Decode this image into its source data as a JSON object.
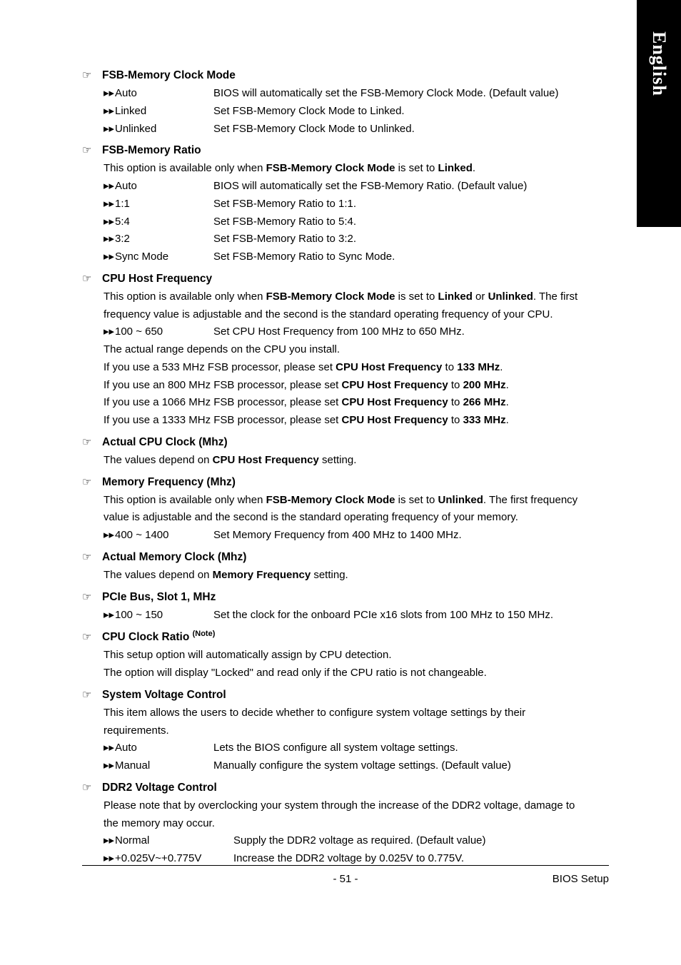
{
  "side_tab": "English",
  "footer": {
    "page": "- 51 -",
    "section": "BIOS Setup"
  },
  "colors": {
    "bg": "#ffffff",
    "text": "#000000",
    "tab_bg": "#000000",
    "tab_text": "#ffffff"
  },
  "typography": {
    "body_size_pt": 11,
    "heading_size_pt": 11.5,
    "line_height": 1.65,
    "heading_weight": "bold"
  },
  "icons": {
    "hand": "☞",
    "arrow": "▸▸"
  },
  "sections": [
    {
      "title": "FSB-Memory Clock Mode",
      "options": [
        {
          "label": "Auto",
          "desc": "BIOS will automatically set the FSB-Memory Clock Mode. (Default value)"
        },
        {
          "label": "Linked",
          "desc": "Set FSB-Memory Clock Mode to Linked."
        },
        {
          "label": "Unlinked",
          "desc": "Set FSB-Memory Clock Mode to Unlinked."
        }
      ]
    },
    {
      "title": "FSB-Memory Ratio",
      "intro_parts": [
        "This option is available only when ",
        "FSB-Memory Clock Mode",
        " is set to ",
        "Linked",
        "."
      ],
      "options": [
        {
          "label": "Auto",
          "desc": "BIOS will automatically set the FSB-Memory Ratio. (Default value)"
        },
        {
          "label": "1:1",
          "desc": "Set FSB-Memory Ratio to 1:1."
        },
        {
          "label": "5:4",
          "desc": "Set FSB-Memory Ratio to 5:4."
        },
        {
          "label": "3:2",
          "desc": "Set FSB-Memory Ratio to 3:2."
        },
        {
          "label": "Sync Mode",
          "desc": "Set FSB-Memory Ratio to Sync Mode."
        }
      ]
    },
    {
      "title": "CPU Host Frequency",
      "intro_parts": [
        "This option is available only when ",
        "FSB-Memory Clock Mode",
        " is set to ",
        "Linked",
        " or ",
        "Unlinked",
        ". The first frequency value is adjustable and the second is the standard operating frequency of your CPU."
      ],
      "options": [
        {
          "label": "100 ~ 650",
          "desc": "Set CPU Host Frequency from 100 MHz to 650 MHz."
        }
      ],
      "after_lines": [
        {
          "parts": [
            "The actual range depends on the CPU you install."
          ]
        },
        {
          "parts": [
            "If you use a 533 MHz FSB processor, please set ",
            "CPU Host Frequency",
            " to ",
            "133 MHz",
            "."
          ]
        },
        {
          "parts": [
            "If you use an 800 MHz FSB processor, please set ",
            "CPU Host Frequency",
            " to ",
            "200 MHz",
            "."
          ]
        },
        {
          "parts": [
            "If you use a 1066 MHz FSB processor, please set ",
            "CPU Host Frequency",
            " to ",
            "266 MHz",
            "."
          ]
        },
        {
          "parts": [
            "If you use a 1333 MHz FSB processor, please set ",
            "CPU Host Frequency",
            " to ",
            "333 MHz",
            "."
          ]
        }
      ]
    },
    {
      "title": "Actual CPU Clock (Mhz)",
      "intro_parts": [
        "The values depend on ",
        "CPU Host Frequency",
        " setting."
      ]
    },
    {
      "title": "Memory Frequency (Mhz)",
      "intro_parts": [
        "This option is available only when ",
        "FSB-Memory Clock Mode",
        " is set to ",
        "Unlinked",
        ". The first frequency value is adjustable and the second is the standard operating frequency of your memory."
      ],
      "options": [
        {
          "label": "400 ~ 1400",
          "desc": "Set Memory Frequency from 400 MHz to 1400 MHz."
        }
      ]
    },
    {
      "title": "Actual Memory Clock (Mhz)",
      "intro_parts": [
        "The values depend on ",
        "Memory Frequency",
        " setting."
      ]
    },
    {
      "title": "PCIe Bus, Slot 1, MHz",
      "options": [
        {
          "label": "100 ~ 150",
          "desc": "Set the clock for the onboard PCIe x16 slots from 100 MHz to 150 MHz."
        }
      ]
    },
    {
      "title": "CPU Clock Ratio ",
      "note": "(Note)",
      "intro_parts": [
        "This setup option will automatically assign by CPU detection."
      ],
      "after_lines": [
        {
          "parts": [
            "The option will display \"Locked\" and read only if the CPU ratio is not changeable."
          ]
        }
      ]
    },
    {
      "title": "System Voltage Control",
      "intro_parts": [
        "This item allows the users to decide whether to configure system voltage settings by their requirements."
      ],
      "options": [
        {
          "label": "Auto",
          "desc": "Lets the BIOS configure all system voltage settings."
        },
        {
          "label": "Manual",
          "desc": "Manually configure the system voltage settings. (Default value)"
        }
      ]
    },
    {
      "title": "DDR2 Voltage Control",
      "intro_parts": [
        "Please note that by overclocking your system through the increase of the DDR2 voltage, damage to the memory may occur."
      ],
      "options_wide": true,
      "options": [
        {
          "label": "Normal",
          "desc": "Supply the DDR2 voltage as required. (Default value)"
        },
        {
          "label": "+0.025V~+0.775V",
          "desc": "Increase the DDR2 voltage by 0.025V to 0.775V."
        }
      ]
    }
  ]
}
